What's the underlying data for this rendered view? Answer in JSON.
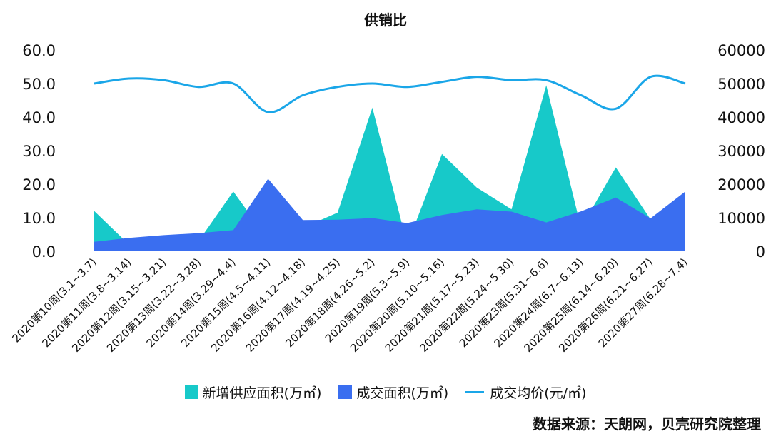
{
  "chart_data": {
    "type": "area",
    "title": "供销比",
    "categories": [
      "2020第10周(3.1~3.7)",
      "2020第11周(3.8~3.14)",
      "2020第12周(3.15~3.21)",
      "2020第13周(3.22~3.28)",
      "2020第14周(3.29~4.4)",
      "2020第15周(4.5~4.11)",
      "2020第16周(4.12~4.18)",
      "2020第17周(4.19~4.25)",
      "2020第18周(4.26~5.2)",
      "2020第19周(5.3~5.9)",
      "2020第20周(5.10~5.16)",
      "2020第21周(5.17~5.23)",
      "2020第22周(5.24~5.30)",
      "2020第23周(5.31~6.6)",
      "2020第24周(6.7~6.13)",
      "2020第25周(6.14~6.20)",
      "2020第26周(6.21~6.27)",
      "2020第27周(6.28~7.4)"
    ],
    "series": [
      {
        "name": "新增供应面积(万㎡)",
        "type": "area",
        "axis": "left",
        "color": "#17c9c9",
        "values": [
          12.0,
          2.0,
          4.0,
          3.0,
          17.8,
          3.5,
          7.0,
          11.5,
          42.8,
          2.0,
          29.0,
          19.0,
          12.5,
          49.5,
          7.0,
          25.0,
          9.5,
          17.5
        ]
      },
      {
        "name": "成交面积(万㎡)",
        "type": "area",
        "axis": "left",
        "color": "#3a6ef0",
        "values": [
          2.8,
          4.0,
          4.8,
          5.4,
          6.3,
          21.6,
          9.3,
          9.4,
          9.9,
          8.4,
          10.8,
          12.5,
          11.8,
          8.6,
          11.9,
          16.0,
          9.8,
          17.8
        ]
      },
      {
        "name": "成交均价(元/㎡)",
        "type": "line",
        "axis": "right",
        "color": "#1aa6e8",
        "values": [
          50000,
          51500,
          51000,
          49000,
          50000,
          41500,
          46500,
          49000,
          50000,
          49000,
          50500,
          52000,
          51000,
          51000,
          46500,
          42500,
          52000,
          50000
        ]
      }
    ],
    "yaxis_left": {
      "ylim": [
        0,
        60
      ],
      "ticks": [
        "0.0",
        "10.0",
        "20.0",
        "30.0",
        "40.0",
        "50.0",
        "60.0"
      ]
    },
    "yaxis_right": {
      "ylim": [
        0,
        60000
      ],
      "ticks": [
        "0",
        "10000",
        "20000",
        "30000",
        "40000",
        "50000",
        "60000"
      ]
    },
    "grid": false,
    "legend_position": "bottom"
  },
  "source_note": "数据来源：天朗网，贝壳研究院整理"
}
